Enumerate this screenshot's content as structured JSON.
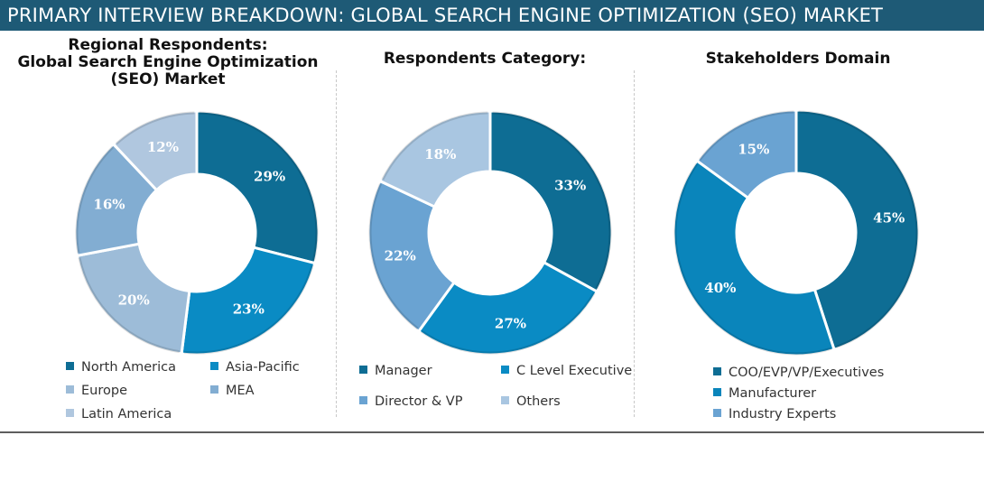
{
  "header": {
    "title": "PRIMARY INTERVIEW BREAKDOWN: GLOBAL SEARCH ENGINE OPTIMIZATION (SEO) MARKET"
  },
  "chart_data": [
    {
      "type": "pie",
      "title": "Regional Respondents: Global Search Engine Optimization (SEO) Market",
      "title_lines": [
        "Regional Respondents:",
        "Global Search Engine Optimization",
        "(SEO) Market"
      ],
      "legend_placement": "bottom",
      "series": [
        {
          "name": "North America",
          "value": 29,
          "label": "29%",
          "color": "#0e6d94"
        },
        {
          "name": "Asia-Pacific",
          "value": 23,
          "label": "23%",
          "color": "#0a8bc4"
        },
        {
          "name": "Europe",
          "value": 20,
          "label": "20%",
          "color": "#9dbcd8"
        },
        {
          "name": "MEA",
          "value": 16,
          "label": "16%",
          "color": "#82add2"
        },
        {
          "name": "Latin America",
          "value": 12,
          "label": "12%",
          "color": "#b0c7df"
        }
      ]
    },
    {
      "type": "pie",
      "title": "Respondents Category:",
      "title_lines": [
        "Respondents Category:"
      ],
      "legend_placement": "bottom",
      "series": [
        {
          "name": "Manager",
          "value": 33,
          "label": "33%",
          "color": "#0e6d94"
        },
        {
          "name": "C Level Executive",
          "value": 27,
          "label": "27%",
          "color": "#0a8bc4"
        },
        {
          "name": "Director & VP",
          "value": 22,
          "label": "22%",
          "color": "#6aa3d2"
        },
        {
          "name": "Others",
          "value": 18,
          "label": "18%",
          "color": "#a9c6e1"
        }
      ]
    },
    {
      "type": "pie",
      "title": "Stakeholders Domain",
      "title_lines": [
        "Stakeholders Domain"
      ],
      "legend_placement": "bottom",
      "series": [
        {
          "name": "COO/EVP/VP/Executives",
          "value": 45,
          "label": "45%",
          "color": "#0e6d94"
        },
        {
          "name": "Manufacturer",
          "value": 40,
          "label": "40%",
          "color": "#0a85bb"
        },
        {
          "name": "Industry Experts",
          "value": 15,
          "label": "15%",
          "color": "#6aa3d2"
        }
      ]
    }
  ]
}
